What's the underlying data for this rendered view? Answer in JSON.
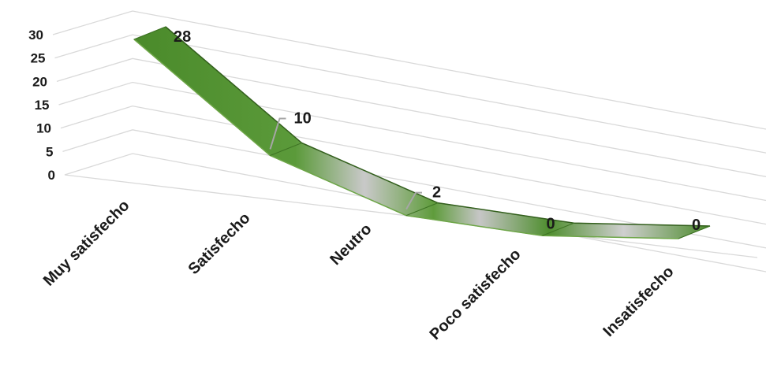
{
  "chart_data": {
    "type": "line",
    "style": "3d-ribbon",
    "categories": [
      "Muy satisfecho",
      "Satisfecho",
      "Neutro",
      "Poco satisfecho",
      "Insatisfecho"
    ],
    "values": [
      28,
      10,
      2,
      0,
      0
    ],
    "data_labels": [
      "28",
      "10",
      "2",
      "0",
      "0"
    ],
    "y_ticks": [
      "0",
      "5",
      "10",
      "15",
      "20",
      "25",
      "30"
    ],
    "ylim": [
      0,
      30
    ],
    "grid": true,
    "legend": "none",
    "colors": {
      "ribbon_dark": "#4e8a2e",
      "ribbon_light": "#c8c8c8",
      "grid": "#d9d9d9",
      "text": "#1a1a1a"
    }
  }
}
